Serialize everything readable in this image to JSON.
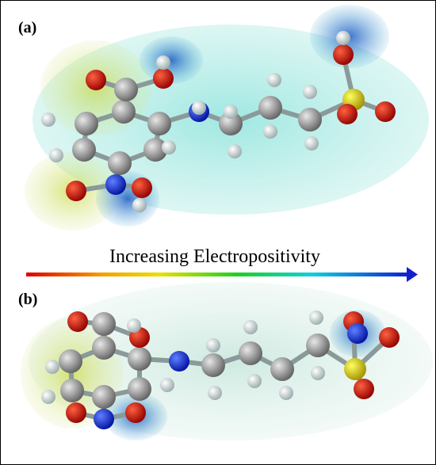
{
  "panels": [
    {
      "label": "(a)"
    },
    {
      "label": "(b)"
    }
  ],
  "scale": {
    "label": "Increasing Electropositivity"
  }
}
